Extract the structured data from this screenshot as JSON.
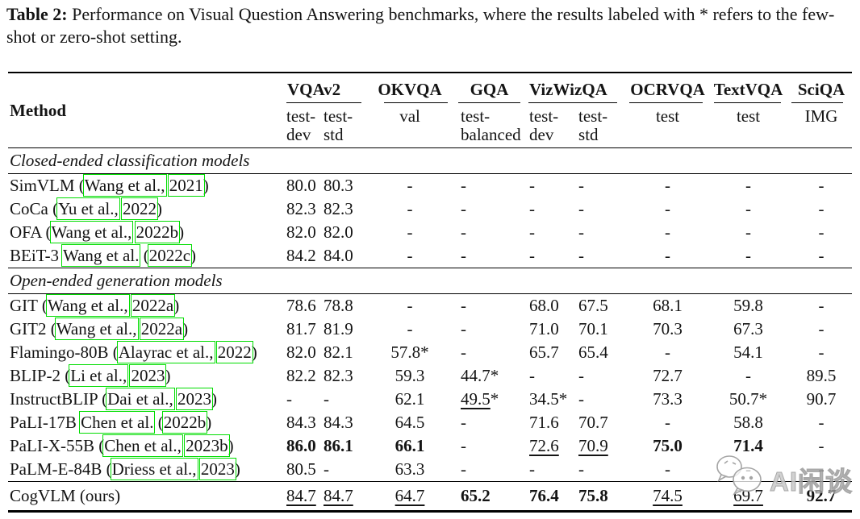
{
  "caption": {
    "label": "Table 2:",
    "text": " Performance on Visual Question Answering benchmarks, where the results labeled with * refers to the few-shot or zero-shot setting."
  },
  "accent_colors": {
    "citation_box_green": "#00dd00",
    "watermark_gray": "#9a9a9a"
  },
  "watermark": {
    "text": "AI闲谈",
    "icon": "chat-bubbles-icon"
  },
  "table": {
    "method_header": "Method",
    "groups": [
      {
        "label": "VQAv2",
        "span": 2,
        "align": "left"
      },
      {
        "label": "OKVQA",
        "span": 1,
        "align": "center"
      },
      {
        "label": "GQA",
        "span": 1,
        "align": "center"
      },
      {
        "label": "VizWizQA",
        "span": 2,
        "align": "left"
      },
      {
        "label": "OCRVQA",
        "span": 1,
        "align": "center"
      },
      {
        "label": "TextVQA",
        "span": 1,
        "align": "center"
      },
      {
        "label": "SciQA",
        "span": 1,
        "align": "center"
      }
    ],
    "subheaders": [
      "test-\ndev",
      "test-\nstd",
      "val",
      "test-\nbalanced",
      "test-\ndev",
      "test-\nstd",
      "test",
      "test",
      "IMG"
    ],
    "col_align": [
      "left",
      "left",
      "center",
      "left",
      "left",
      "left",
      "center",
      "center",
      "center"
    ],
    "sections": [
      {
        "title": "Closed-ended classification models",
        "rows": [
          {
            "method": [
              {
                "t": "SimVLM ("
              },
              {
                "t": "Wang et al.,",
                "box": true
              },
              {
                "t": " "
              },
              {
                "t": "2021",
                "box": true
              },
              {
                "t": ")"
              }
            ],
            "values": [
              "80.0",
              "80.3",
              "-",
              "-",
              "-",
              "-",
              "-",
              "-",
              "-"
            ]
          },
          {
            "method": [
              {
                "t": "CoCa ("
              },
              {
                "t": "Yu et al.,",
                "box": true
              },
              {
                "t": " "
              },
              {
                "t": "2022",
                "box": true
              },
              {
                "t": ")"
              }
            ],
            "values": [
              "82.3",
              "82.3",
              "-",
              "-",
              "-",
              "-",
              "-",
              "-",
              "-"
            ]
          },
          {
            "method": [
              {
                "t": "OFA ("
              },
              {
                "t": "Wang et al.,",
                "box": true
              },
              {
                "t": " "
              },
              {
                "t": "2022b",
                "box": true
              },
              {
                "t": ")"
              }
            ],
            "values": [
              "82.0",
              "82.0",
              "-",
              "-",
              "-",
              "-",
              "-",
              "-",
              "-"
            ]
          },
          {
            "method": [
              {
                "t": "BEiT-3 "
              },
              {
                "t": "Wang et al.",
                "box": true
              },
              {
                "t": " ("
              },
              {
                "t": "2022c",
                "box": true
              },
              {
                "t": ")"
              }
            ],
            "values": [
              "84.2",
              "84.0",
              "-",
              "-",
              "-",
              "-",
              "-",
              "-",
              "-"
            ]
          }
        ]
      },
      {
        "title": "Open-ended generation models",
        "rows": [
          {
            "method": [
              {
                "t": "GIT ("
              },
              {
                "t": "Wang et al.,",
                "box": true
              },
              {
                "t": " "
              },
              {
                "t": "2022a",
                "box": true
              },
              {
                "t": ")"
              }
            ],
            "values": [
              "78.6",
              "78.8",
              "-",
              "-",
              "68.0",
              "67.5",
              "68.1",
              "59.8",
              "-"
            ]
          },
          {
            "method": [
              {
                "t": "GIT2 ("
              },
              {
                "t": "Wang et al.,",
                "box": true
              },
              {
                "t": " "
              },
              {
                "t": "2022a",
                "box": true
              },
              {
                "t": ")"
              }
            ],
            "values": [
              "81.7",
              "81.9",
              "-",
              "-",
              "71.0",
              "70.1",
              "70.3",
              "67.3",
              "-"
            ]
          },
          {
            "method": [
              {
                "t": "Flamingo-80B ("
              },
              {
                "t": "Alayrac et al.,",
                "box": true
              },
              {
                "t": " "
              },
              {
                "t": "2022",
                "box": true
              },
              {
                "t": ")"
              }
            ],
            "values": [
              "82.0",
              "82.1",
              "57.8*",
              "-",
              "65.7",
              "65.4",
              "-",
              "54.1",
              "-"
            ]
          },
          {
            "method": [
              {
                "t": "BLIP-2 ("
              },
              {
                "t": "Li et al.,",
                "box": true
              },
              {
                "t": " "
              },
              {
                "t": "2023",
                "box": true
              },
              {
                "t": ")"
              }
            ],
            "values": [
              "82.2",
              "82.3",
              "59.3",
              "44.7*",
              "-",
              "-",
              "72.7",
              "-",
              "89.5"
            ]
          },
          {
            "method": [
              {
                "t": "InstructBLIP ("
              },
              {
                "t": "Dai et al.,",
                "box": true
              },
              {
                "t": " "
              },
              {
                "t": "2023",
                "box": true
              },
              {
                "t": ")"
              }
            ],
            "values": [
              "-",
              "-",
              "62.1",
              {
                "t": "49.5",
                "u": true,
                "after": "*"
              },
              "34.5*",
              "-",
              "73.3",
              "50.7*",
              "90.7"
            ]
          },
          {
            "method": [
              {
                "t": "PaLI-17B "
              },
              {
                "t": "Chen et al.",
                "box": true
              },
              {
                "t": " ("
              },
              {
                "t": "2022b",
                "box": true
              },
              {
                "t": ")"
              }
            ],
            "values": [
              "84.3",
              "84.3",
              "64.5",
              "-",
              "71.6",
              "70.7",
              "-",
              "58.8",
              "-"
            ]
          },
          {
            "method": [
              {
                "t": "PaLI-X-55B ("
              },
              {
                "t": "Chen et al.,",
                "box": true
              },
              {
                "t": " "
              },
              {
                "t": "2023b",
                "box": true
              },
              {
                "t": ")"
              }
            ],
            "values": [
              {
                "t": "86.0",
                "b": true
              },
              {
                "t": "86.1",
                "b": true
              },
              {
                "t": "66.1",
                "b": true
              },
              "-",
              {
                "t": "72.6",
                "u": true
              },
              {
                "t": "70.9",
                "u": true
              },
              {
                "t": "75.0",
                "b": true
              },
              {
                "t": "71.4",
                "b": true
              },
              "-"
            ]
          },
          {
            "method": [
              {
                "t": "PaLM-E-84B ("
              },
              {
                "t": "Driess et al.,",
                "box": true
              },
              {
                "t": " "
              },
              {
                "t": "2023",
                "box": true
              },
              {
                "t": ")"
              }
            ],
            "values": [
              "80.5",
              "-",
              "63.3",
              "-",
              "-",
              "-",
              "-",
              "-",
              "-"
            ]
          }
        ]
      }
    ],
    "footer_row": {
      "method": [
        {
          "t": "CogVLM (ours)"
        }
      ],
      "values": [
        {
          "t": "84.7",
          "u": true
        },
        {
          "t": "84.7",
          "u": true
        },
        {
          "t": "64.7",
          "u": true
        },
        {
          "t": "65.2",
          "b": true
        },
        {
          "t": "76.4",
          "b": true
        },
        {
          "t": "75.8",
          "b": true
        },
        {
          "t": "74.5",
          "u": true
        },
        {
          "t": "69.7",
          "u": true
        },
        {
          "t": "92.7",
          "b": true
        }
      ]
    }
  }
}
